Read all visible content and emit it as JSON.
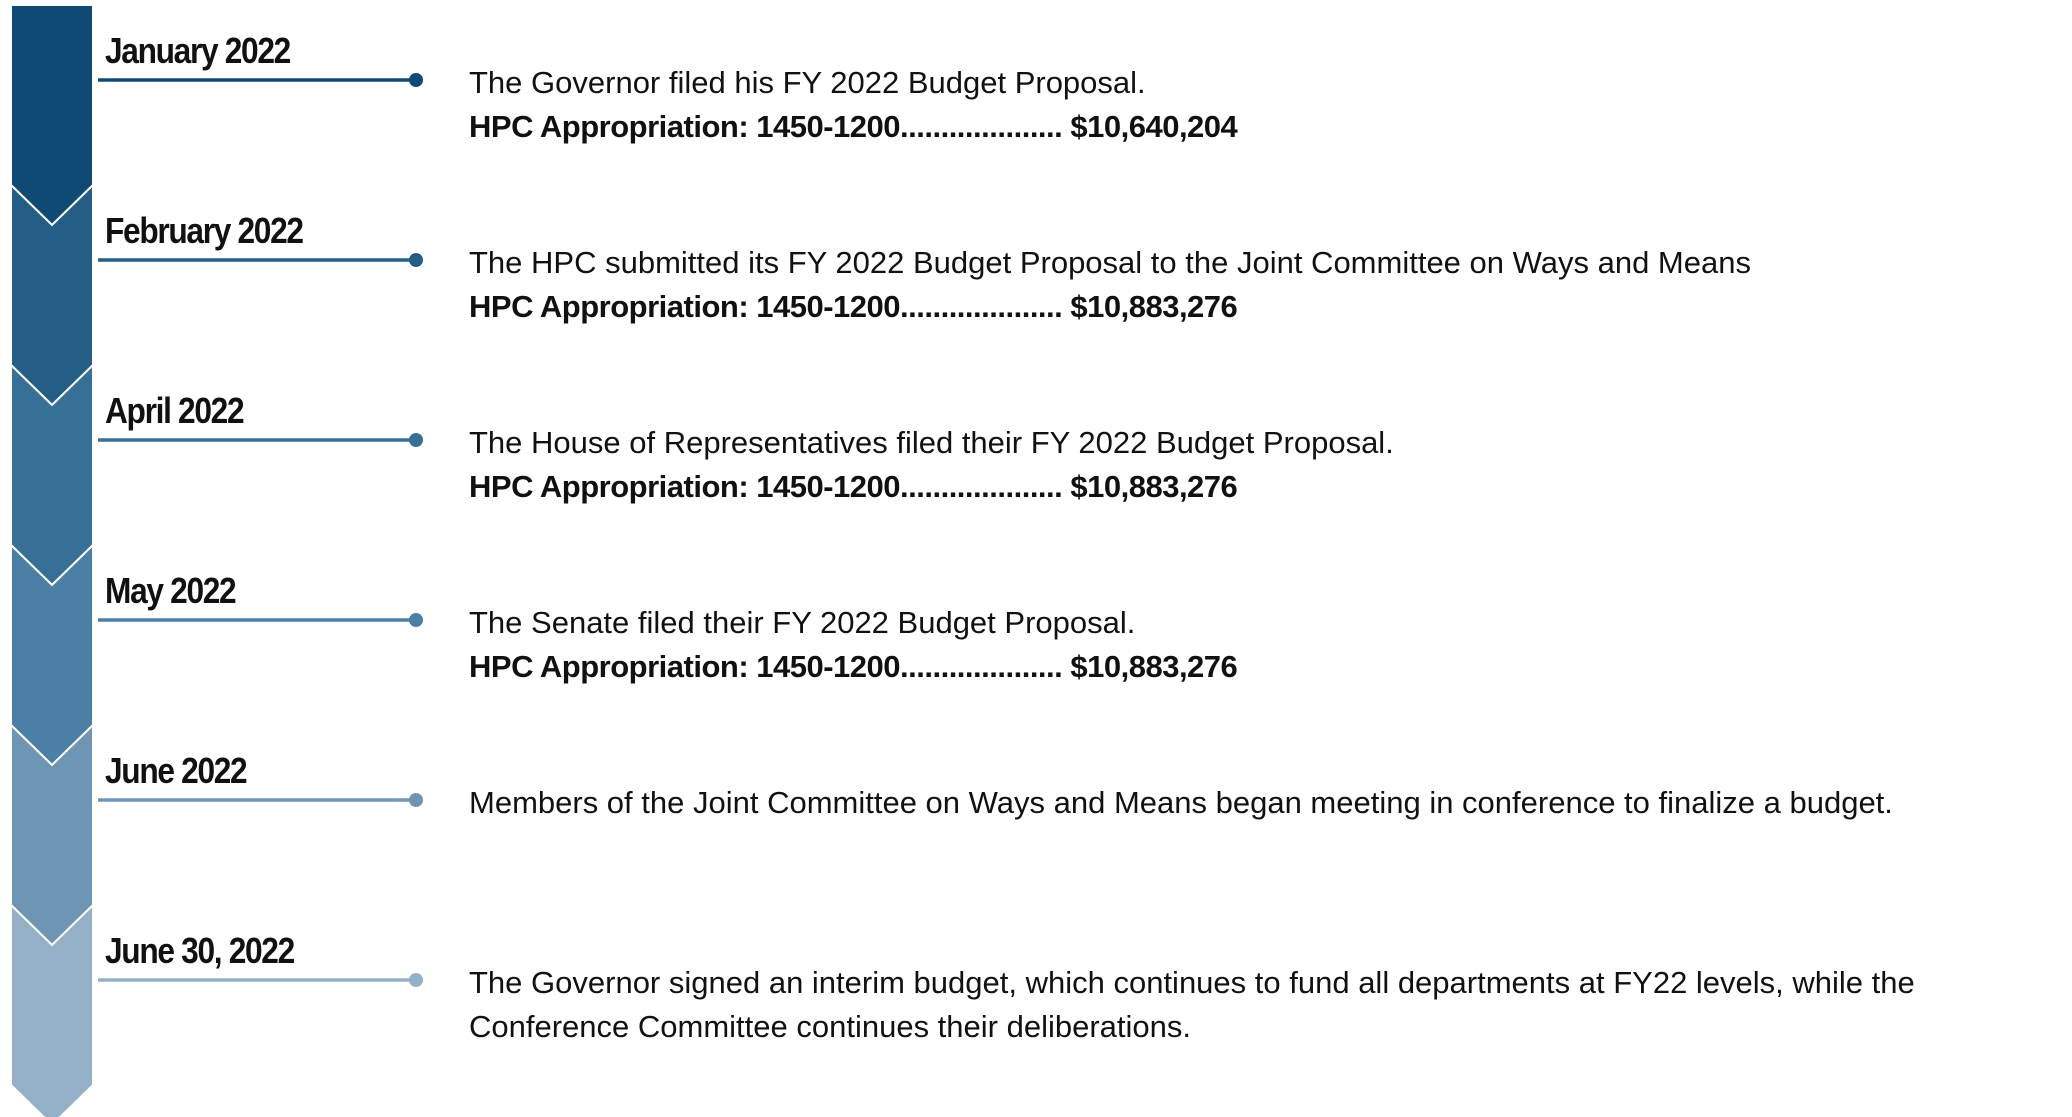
{
  "events": [
    {
      "date": "January 2022",
      "description": "The Governor filed his FY 2022 Budget Proposal.",
      "appropriation": "HPC Appropriation: 1450-1200.................... $10,640,204"
    },
    {
      "date": "February 2022",
      "description": "The HPC submitted its FY 2022 Budget Proposal to the Joint Committee on Ways and Means",
      "appropriation": "HPC Appropriation: 1450-1200.................... $10,883,276"
    },
    {
      "date": "April 2022",
      "description": "The House of Representatives filed their FY 2022 Budget Proposal.",
      "appropriation": "HPC Appropriation: 1450-1200.................... $10,883,276"
    },
    {
      "date": "May 2022",
      "description": "The Senate filed their FY 2022 Budget Proposal.",
      "appropriation": "HPC Appropriation: 1450-1200.................... $10,883,276"
    },
    {
      "date": "June 2022",
      "description": "Members of the Joint Committee on Ways and Means began meeting in conference to finalize a budget."
    },
    {
      "date": "June 30, 2022",
      "description": "The Governor signed an interim budget, which continues to fund all departments at FY22 levels, while the Conference Committee continues their deliberations."
    }
  ]
}
